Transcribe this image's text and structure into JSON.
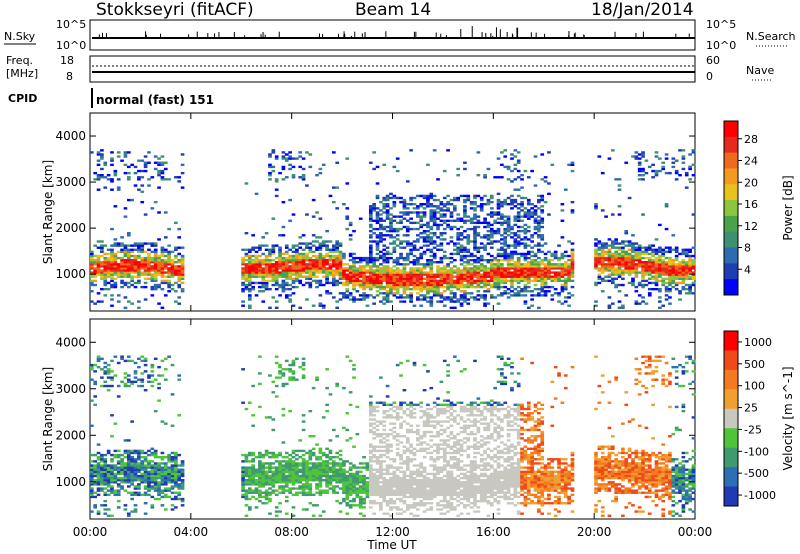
{
  "header": {
    "radar": "Stokkseyri (fitACF)",
    "beam": "Beam 14",
    "date": "18/Jan/2014"
  },
  "sky_panel": {
    "left_label": "N.Sky",
    "right_label": "N.Search",
    "left_ticks": [
      "10^5",
      "10^0"
    ],
    "right_ticks": [
      "10^5",
      "10^0"
    ]
  },
  "freq_panel": {
    "left_label_1": "Freq.",
    "left_label_2": "[MHz]",
    "right_label": "Nave",
    "left_ticks": [
      "18",
      "8"
    ],
    "right_ticks": [
      "60",
      "0"
    ]
  },
  "cpid": {
    "label": "CPID",
    "mode_text": "normal (fast) 151"
  },
  "chart_data": [
    {
      "type": "heatmap",
      "name": "power",
      "ylabel": "Slant Range [km]",
      "xlabel": "Time UT",
      "x_ticks": [
        "00:00",
        "04:00",
        "08:00",
        "12:00",
        "16:00",
        "20:00",
        "00:00"
      ],
      "y_ticks": [
        "1000",
        "2000",
        "3000",
        "4000"
      ],
      "ylim": [
        200,
        4500
      ],
      "xlim_hours": [
        0,
        24
      ],
      "colorbar_label": "Power [dB]",
      "colorbar_ticks": [
        "4",
        "8",
        "12",
        "16",
        "20",
        "24",
        "28"
      ],
      "colors": [
        "#0000ff",
        "#1e3fb4",
        "#2f6bb0",
        "#3f8f73",
        "#4ca24a",
        "#8cc63e",
        "#e8c21c",
        "#f39a1f",
        "#f06a1d",
        "#e52a1d",
        "#ff0000"
      ]
    },
    {
      "type": "heatmap",
      "name": "velocity",
      "ylabel": "Slant Range [km]",
      "xlabel": "Time UT",
      "x_ticks": [
        "00:00",
        "04:00",
        "08:00",
        "12:00",
        "16:00",
        "20:00",
        "00:00"
      ],
      "y_ticks": [
        "1000",
        "2000",
        "3000",
        "4000"
      ],
      "ylim": [
        200,
        4500
      ],
      "xlim_hours": [
        0,
        24
      ],
      "colorbar_label": "Velocity [m s^-1]",
      "colorbar_ticks": [
        "1000",
        "500",
        "100",
        "25",
        "-25",
        "-100",
        "-500",
        "-1000"
      ],
      "colors": [
        "#1f3ab2",
        "#2c6fb5",
        "#3f9a6f",
        "#4fc43a",
        "#c8c8c0",
        "#f0a030",
        "#f57a1f",
        "#f04a1a",
        "#ff0000"
      ]
    }
  ]
}
